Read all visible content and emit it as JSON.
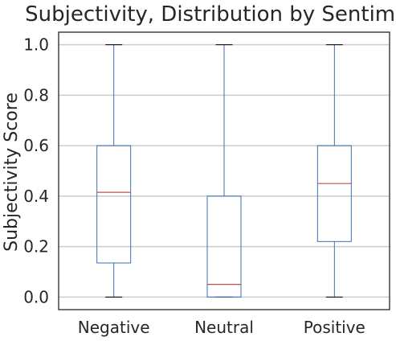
{
  "chart_data": {
    "type": "boxplot",
    "title": "Subjectivity, Distribution by Sentiment",
    "xlabel": "",
    "ylabel": "Subjectivity Score",
    "ylim": [
      -0.05,
      1.05
    ],
    "yticks": [
      0.0,
      0.2,
      0.4,
      0.6,
      0.8,
      1.0
    ],
    "ytick_labels": [
      "0.0",
      "0.2",
      "0.4",
      "0.6",
      "0.8",
      "1.0"
    ],
    "grid": "horizontal",
    "categories": [
      "Negative",
      "Neutral",
      "Positive"
    ],
    "boxes": [
      {
        "category": "Negative",
        "min": 0.0,
        "q1": 0.135,
        "median": 0.415,
        "q3": 0.6,
        "max": 1.0
      },
      {
        "category": "Neutral",
        "min": 0.0,
        "q1": 0.0,
        "median": 0.05,
        "q3": 0.4,
        "max": 1.0
      },
      {
        "category": "Positive",
        "min": 0.0,
        "q1": 0.22,
        "median": 0.45,
        "q3": 0.6,
        "max": 1.0
      }
    ],
    "colors": {
      "box": "#3b6fb6",
      "whisker": "#3b6fb6",
      "median": "#c0504d",
      "caps": "#000000",
      "grid": "#cccccc",
      "axes": "#262626"
    }
  }
}
